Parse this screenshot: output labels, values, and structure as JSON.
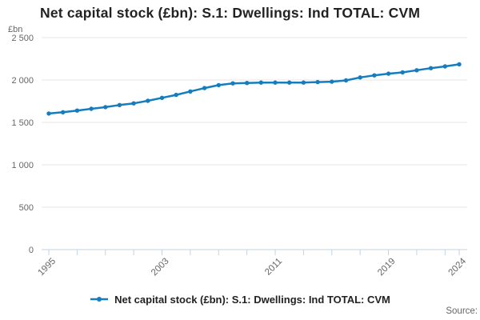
{
  "header": {
    "title": "Net capital stock (£bn): S.1: Dwellings: Ind TOTAL: CVM"
  },
  "axes": {
    "unit_label": "£bn"
  },
  "legend": {
    "label": "Net capital stock (£bn): S.1: Dwellings: Ind TOTAL: CVM"
  },
  "footer": {
    "source_label": "Source:"
  },
  "colors": {
    "line": "#157dbd",
    "grid": "#e6e6e6",
    "axis": "#c3d2e2",
    "tick_text": "#666666",
    "title_text": "#222222"
  },
  "chart_data": {
    "type": "line",
    "title": "Net capital stock (£bn): S.1: Dwellings: Ind TOTAL: CVM",
    "ylabel": "£bn",
    "xlabel": "",
    "grid": "horizontal-only",
    "legend_position": "bottom",
    "marker": "circle",
    "xlim": [
      1995,
      2024
    ],
    "ylim": [
      0,
      2500
    ],
    "yticks": [
      {
        "value": 0,
        "label": "0"
      },
      {
        "value": 500,
        "label": "500"
      },
      {
        "value": 1000,
        "label": "1 000"
      },
      {
        "value": 1500,
        "label": "1 500"
      },
      {
        "value": 2000,
        "label": "2 000"
      },
      {
        "value": 2500,
        "label": "2 500"
      }
    ],
    "xticks_minor": [
      1995,
      1997,
      1999,
      2001,
      2003,
      2005,
      2007,
      2009,
      2011,
      2013,
      2015,
      2017,
      2019,
      2021,
      2023,
      2024
    ],
    "xticks_labeled": [
      1995,
      2003,
      2011,
      2019,
      2024
    ],
    "series": [
      {
        "name": "Net capital stock (£bn): S.1: Dwellings: Ind TOTAL: CVM",
        "x": [
          1995,
          1996,
          1997,
          1998,
          1999,
          2000,
          2001,
          2002,
          2003,
          2004,
          2005,
          2006,
          2007,
          2008,
          2009,
          2010,
          2011,
          2012,
          2013,
          2014,
          2015,
          2016,
          2017,
          2018,
          2019,
          2020,
          2021,
          2022,
          2023,
          2024
        ],
        "values": [
          1605,
          1620,
          1640,
          1660,
          1680,
          1705,
          1725,
          1755,
          1790,
          1825,
          1865,
          1905,
          1940,
          1960,
          1965,
          1970,
          1970,
          1970,
          1970,
          1975,
          1980,
          1995,
          2030,
          2055,
          2075,
          2090,
          2115,
          2140,
          2160,
          2185
        ]
      }
    ]
  }
}
